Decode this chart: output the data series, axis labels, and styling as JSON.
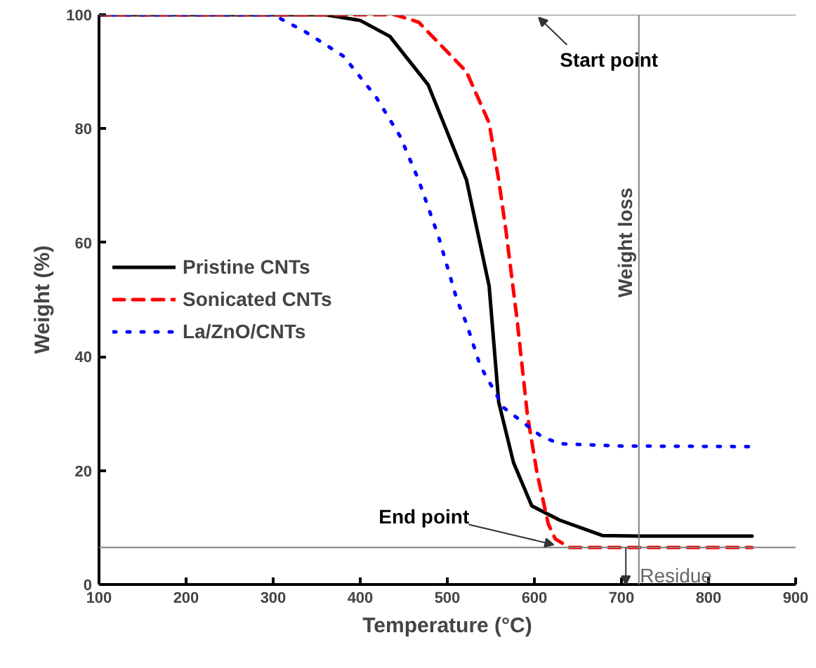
{
  "chart_data": {
    "type": "line",
    "xlabel": "Temperature (°C)",
    "ylabel": "Weight (%)",
    "xlim": [
      100,
      900
    ],
    "ylim": [
      0,
      100
    ],
    "xticks": [
      100,
      200,
      300,
      400,
      500,
      600,
      700,
      800,
      900
    ],
    "yticks": [
      0,
      20,
      40,
      60,
      80,
      100
    ],
    "grid": false,
    "legend": "left",
    "series": [
      {
        "name": "Pristine CNTs",
        "color": "#000000",
        "line_style": "solid",
        "x": [
          100,
          360,
          400,
          434,
          478,
          522,
          548,
          559,
          576,
          597,
          629,
          678,
          720,
          850
        ],
        "values": [
          100,
          100,
          99,
          96.2,
          87.7,
          71,
          52.4,
          32,
          21.4,
          13.8,
          11.3,
          8.6,
          8.5,
          8.5
        ]
      },
      {
        "name": "Sonicated CNTs",
        "color": "#ff0000",
        "line_style": "dashed",
        "x": [
          100,
          440,
          467,
          522,
          548,
          559,
          567,
          580,
          592,
          603,
          616,
          624,
          640,
          850
        ],
        "values": [
          100,
          100,
          98.7,
          90,
          81,
          71,
          62.5,
          46.6,
          29.7,
          19.6,
          10.6,
          8,
          6.5,
          6.5
        ]
      },
      {
        "name": "La/ZnO/CNTs",
        "color": "#0000ff",
        "line_style": "dotted",
        "x": [
          100,
          300,
          337,
          381,
          418,
          446,
          467,
          490,
          511,
          522,
          538,
          565,
          608,
          629,
          700,
          850
        ],
        "values": [
          100,
          100,
          97,
          92.7,
          85.6,
          78.6,
          71,
          61,
          50,
          45.8,
          38.3,
          31,
          26,
          24.7,
          24.3,
          24.2
        ]
      }
    ],
    "ref_lines": [
      {
        "axis": "y",
        "value": 100,
        "color": "#808080",
        "label": null
      },
      {
        "axis": "y",
        "value": 6.5,
        "color": "#808080",
        "label": null
      },
      {
        "axis": "x",
        "value": 720,
        "color": "#808080",
        "label": "Weight loss"
      }
    ],
    "annotations": [
      {
        "text": "Start point",
        "x": 605,
        "y": 99.5
      },
      {
        "text": "End point",
        "x": 622,
        "y": 7
      },
      {
        "text": "Residue",
        "x": 705,
        "y": 6.5
      }
    ]
  }
}
